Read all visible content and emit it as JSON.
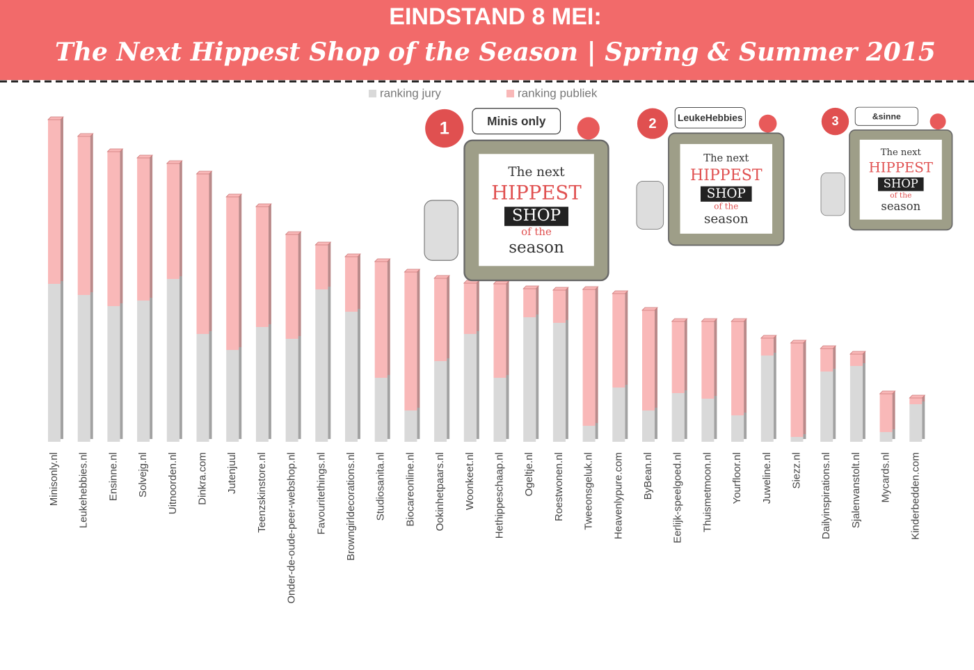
{
  "chart_data": {
    "type": "bar",
    "stacked": true,
    "title": "EINDSTAND 8 MEI:",
    "subtitle": "The Next Hippest Shop of the Season | Spring & Summer 2015",
    "categories": [
      "Minisonly.nl",
      "Leukehebbies.nl",
      "Ensinne.nl",
      "Solvejg.nl",
      "Uitnoorden.nl",
      "Dinkra.com",
      "Jutenjuul",
      "Teenzskinstore.nl",
      "Onder-de-oude-peer-webshop.nl",
      "Favouritethings.nl",
      "Browngirldecorations.nl",
      "Studiosanita.nl",
      "Biocareonline.nl",
      "Ookinhetpaars.nl",
      "Woonkeet.nl",
      "Hethippeschaap.nl",
      "Ogeltje.nl",
      "Roestwonen.nl",
      "Tweeonsgeluk.nl",
      "Heavenlypure.com",
      "ByBean.nl",
      "Eerlijk-speelgoed.nl",
      "Thuismetmoon.nl",
      "Yourfloor.nl",
      "Juweline.nl",
      "Siezz.nl",
      "Dailyinspirations.nl",
      "Sjalenvanstolt.nl",
      "Mycards.nl",
      "Kinderbedden.com"
    ],
    "series": [
      {
        "name": "ranking jury",
        "color": "#d9d9d9",
        "values": [
          227,
          211,
          195,
          203,
          234,
          155,
          132,
          165,
          148,
          219,
          187,
          92,
          45,
          116,
          155,
          92,
          179,
          171,
          23,
          78,
          45,
          70,
          62,
          38,
          124,
          7,
          101,
          109,
          14,
          54
        ]
      },
      {
        "name": "ranking publiek",
        "color": "#f9b8b8",
        "values": [
          236,
          228,
          222,
          205,
          166,
          230,
          220,
          173,
          150,
          64,
          79,
          167,
          199,
          119,
          73,
          135,
          41,
          47,
          196,
          135,
          144,
          103,
          111,
          135,
          25,
          135,
          33,
          17,
          55,
          9
        ]
      }
    ],
    "ylim": [
      0,
      480
    ],
    "grid": false,
    "legend": "top"
  },
  "badges": [
    {
      "rank": "1",
      "logo": "Minis only"
    },
    {
      "rank": "2",
      "logo": "LeukeHebbies"
    },
    {
      "rank": "3",
      "logo": "&sinne"
    }
  ],
  "badge_text": [
    "The next",
    "HIPPEST",
    "SHOP",
    "of the",
    "season"
  ]
}
